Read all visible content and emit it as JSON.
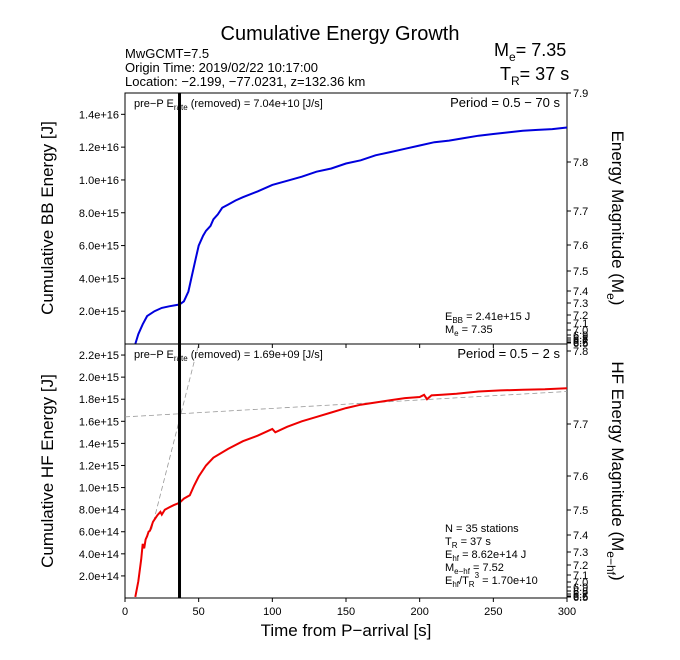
{
  "title": "Cumulative Energy Growth",
  "header": {
    "mw": "MwGCMT=7.5",
    "origin": "Origin Time: 2019/02/22 10:17:00",
    "location": "Location: −2.199, −77.0231, z=132.36 km",
    "me_label": "M",
    "me_sub": "e",
    "me_value": "= 7.35",
    "tr_label": "T",
    "tr_sub": "R",
    "tr_value": "= 37 s"
  },
  "xaxis": {
    "label": "Time from P−arrival [s]",
    "ticks": [
      0,
      50,
      100,
      150,
      200,
      250,
      300
    ],
    "range": [
      0,
      300
    ]
  },
  "marker_time": 37,
  "panel_top": {
    "ylabel": "Cumulative BB Energy [J]",
    "y2label_pre": "Energy Magnitude (M",
    "y2label_sub": "e",
    "y2label_post": ")",
    "note_pre": "pre−P E",
    "note_sub": "rate",
    "note_post": " (removed) = 7.04e+10 [J/s]",
    "period": "Period = 0.5 − 70 s",
    "yticks": [
      "2.0e+15",
      "4.0e+15",
      "6.0e+15",
      "8.0e+15",
      "1.0e+16",
      "1.2e+16",
      "1.4e+16"
    ],
    "ytick_values": [
      2000000000000000.0,
      4000000000000000.0,
      6000000000000000.0,
      8000000000000000.0,
      1e+16,
      1.2e+16,
      1.4e+16
    ],
    "ylim": [
      0,
      1.53e+16
    ],
    "y2ticks": [
      "7.9",
      "7.8",
      "7.7",
      "7.6",
      "7.5",
      "7.4",
      "7.3",
      "7.2",
      "7.1",
      "7.0",
      "6.9",
      "6.8",
      "6.7",
      "6.6",
      "6.5"
    ],
    "info_ebb_pre": "E",
    "info_ebb_sub": "BB",
    "info_ebb_post": " = 2.41e+15 J",
    "info_me_pre": "M",
    "info_me_sub": "e",
    "info_me_post": " = 7.35"
  },
  "panel_bottom": {
    "ylabel": "Cumulative HF Energy [J]",
    "y2label_pre": "HF Energy Magnitude (M",
    "y2label_sub": "e−hf",
    "y2label_post": ")",
    "note_pre": "pre−P E",
    "note_sub": "rate",
    "note_post": " (removed) = 1.69e+09 [J/s]",
    "period": "Period = 0.5 − 2 s",
    "yticks": [
      "2.0e+14",
      "4.0e+14",
      "6.0e+14",
      "8.0e+14",
      "1.0e+15",
      "1.2e+15",
      "1.4e+15",
      "1.6e+15",
      "1.8e+15",
      "2.0e+15",
      "2.2e+15"
    ],
    "ytick_values": [
      200000000000000.0,
      400000000000000.0,
      600000000000000.0,
      800000000000000.0,
      1000000000000000.0,
      1200000000000000.0,
      1400000000000000.0,
      1600000000000000.0,
      1800000000000000.0,
      2000000000000000.0,
      2200000000000000.0
    ],
    "ylim": [
      0,
      2300000000000000.0
    ],
    "y2ticks": [
      "7.8",
      "7.7",
      "7.6",
      "7.5",
      "7.4",
      "7.3",
      "7.2",
      "7.1",
      "7.0",
      "6.9",
      "6.8",
      "6.7",
      "6.6",
      "6.5"
    ],
    "info_n": "N = 35 stations",
    "info_tr_pre": "T",
    "info_tr_sub": "R",
    "info_tr_post": " = 37  s",
    "info_ehf_pre": "E",
    "info_ehf_sub": "hf",
    "info_ehf_post": " = 8.62e+14 J",
    "info_mehf_pre": "M",
    "info_mehf_sub": "e−hf",
    "info_mehf_post": " = 7.52",
    "info_ratio_pre": "E",
    "info_ratio_sub": "hf",
    "info_ratio_mid": "/T",
    "info_ratio_sub2": "R",
    "info_ratio_sup": "3",
    "info_ratio_post": " =  1.70e+10"
  },
  "chart_data": [
    {
      "type": "line",
      "title": "Cumulative Energy Growth",
      "xlabel": "Time from P−arrival [s]",
      "ylabel": "Cumulative BB Energy [J]",
      "y2label": "Energy Magnitude (Me)",
      "xlim": [
        0,
        300
      ],
      "ylim": [
        0,
        1.53e+16
      ],
      "color": "#0000dd",
      "series": [
        {
          "x": [
            7,
            9,
            12,
            15,
            20,
            25,
            30,
            35,
            37,
            40,
            43,
            45,
            48,
            50,
            53,
            55,
            58,
            60,
            63,
            66,
            70,
            75,
            80,
            90,
            100,
            110,
            120,
            130,
            140,
            150,
            160,
            170,
            180,
            190,
            200,
            210,
            220,
            230,
            240,
            250,
            260,
            270,
            280,
            290,
            300
          ],
          "y": [
            0.0,
            600000000000000.0,
            1200000000000000.0,
            1700000000000000.0,
            2000000000000000.0,
            2200000000000000.0,
            2300000000000000.0,
            2380000000000000.0,
            2410000000000000.0,
            2600000000000000.0,
            3200000000000000.0,
            4000000000000000.0,
            5200000000000000.0,
            6000000000000000.0,
            6600000000000000.0,
            6900000000000000.0,
            7200000000000000.0,
            7600000000000000.0,
            7900000000000000.0,
            8300000000000000.0,
            8500000000000000.0,
            8750000000000000.0,
            8950000000000000.0,
            9300000000000000.0,
            9700000000000000.0,
            9950000000000000.0,
            1.02e+16,
            1.05e+16,
            1.07e+16,
            1.1e+16,
            1.12e+16,
            1.15e+16,
            1.17e+16,
            1.19e+16,
            1.21e+16,
            1.23e+16,
            1.24e+16,
            1.255e+16,
            1.27e+16,
            1.28e+16,
            1.29e+16,
            1.3e+16,
            1.305e+16,
            1.31e+16,
            1.32e+16
          ]
        }
      ]
    },
    {
      "type": "line",
      "xlabel": "Time from P−arrival [s]",
      "ylabel": "Cumulative HF Energy [J]",
      "y2label": "HF Energy Magnitude (Me-hf)",
      "xlim": [
        0,
        300
      ],
      "ylim": [
        0,
        2300000000000000.0
      ],
      "color": "#ee0000",
      "series": [
        {
          "x": [
            7,
            9,
            11,
            12,
            13,
            14,
            15,
            16,
            17,
            18,
            19,
            20,
            22,
            24,
            25,
            27,
            30,
            33,
            37,
            40,
            44,
            47,
            50,
            55,
            60,
            70,
            80,
            90,
            95,
            100,
            102,
            110,
            120,
            130,
            140,
            150,
            160,
            170,
            180,
            190,
            200,
            203,
            205,
            208,
            215,
            225,
            240,
            255,
            270,
            285,
            300
          ],
          "y": [
            10000000000000.0,
            150000000000000.0,
            350000000000000.0,
            490000000000000.0,
            450000000000000.0,
            530000000000000.0,
            560000000000000.0,
            600000000000000.0,
            610000000000000.0,
            650000000000000.0,
            690000000000000.0,
            710000000000000.0,
            750000000000000.0,
            780000000000000.0,
            755000000000000.0,
            800000000000000.0,
            820000000000000.0,
            840000000000000.0,
            862000000000000.0,
            900000000000000.0,
            930000000000000.0,
            1020000000000000.0,
            1100000000000000.0,
            1200000000000000.0,
            1270000000000000.0,
            1350000000000000.0,
            1420000000000000.0,
            1470000000000000.0,
            1500000000000000.0,
            1530000000000000.0,
            1500000000000000.0,
            1550000000000000.0,
            1600000000000000.0,
            1640000000000000.0,
            1680000000000000.0,
            1720000000000000.0,
            1750000000000000.0,
            1770000000000000.0,
            1790000000000000.0,
            1810000000000000.0,
            1820000000000000.0,
            1840000000000000.0,
            1800000000000000.0,
            1835000000000000.0,
            1840000000000000.0,
            1850000000000000.0,
            1870000000000000.0,
            1880000000000000.0,
            1885000000000000.0,
            1890000000000000.0,
            1900000000000000.0
          ]
        },
        {
          "name": "",
          "x": [
            0,
            300
          ],
          "y": [
            1640000000000000.0,
            1870000000000000.0
          ]
        }
      ]
    }
  ]
}
